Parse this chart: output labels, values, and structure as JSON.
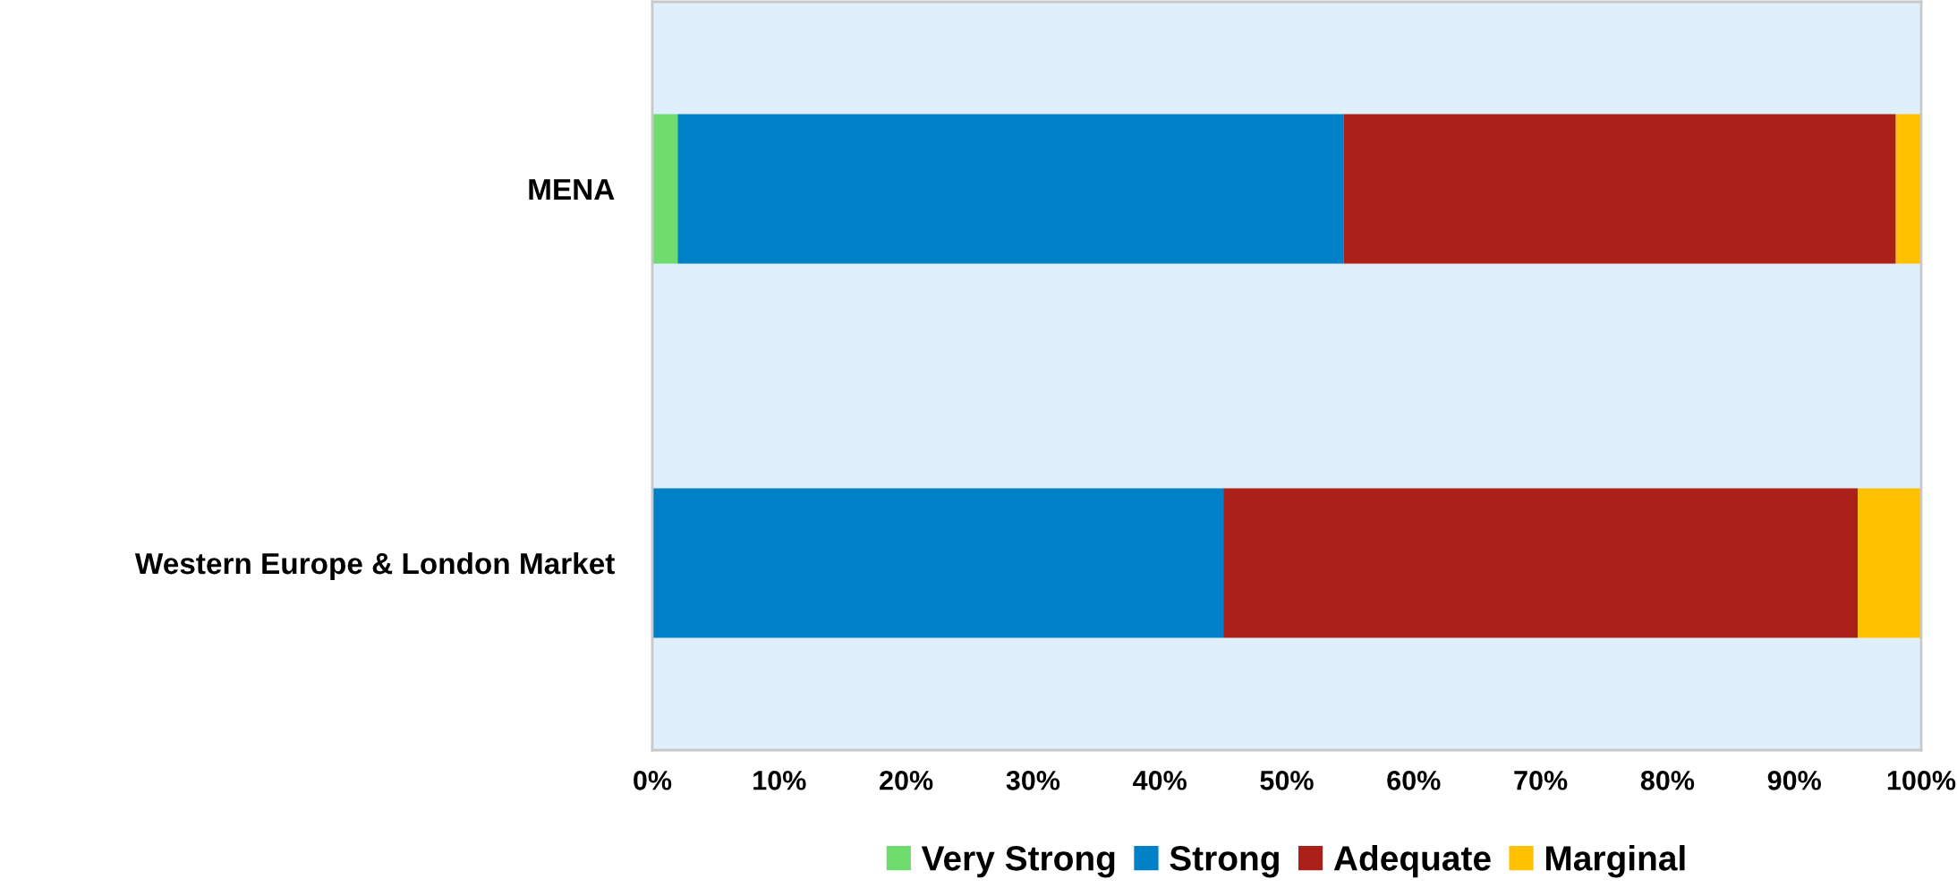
{
  "chart_data": {
    "type": "bar",
    "orientation": "horizontal",
    "stacked": true,
    "categories": [
      "MENA",
      "Western Europe & London Market"
    ],
    "series": [
      {
        "name": "Very Strong",
        "color": "#6fdc6f",
        "values": [
          2,
          0
        ]
      },
      {
        "name": "Strong",
        "color": "#0080c6",
        "values": [
          52.5,
          45
        ]
      },
      {
        "name": "Adequate",
        "color": "#ab2018",
        "values": [
          43.5,
          50
        ]
      },
      {
        "name": "Marginal",
        "color": "#ffc000",
        "values": [
          2,
          5
        ]
      }
    ],
    "xlim": [
      0,
      100
    ],
    "xticks": [
      {
        "value": 0,
        "label": "0%"
      },
      {
        "value": 10,
        "label": "10%"
      },
      {
        "value": 20,
        "label": "20%"
      },
      {
        "value": 30,
        "label": "30%"
      },
      {
        "value": 40,
        "label": "40%"
      },
      {
        "value": 50,
        "label": "50%"
      },
      {
        "value": 60,
        "label": "60%"
      },
      {
        "value": 70,
        "label": "70%"
      },
      {
        "value": 80,
        "label": "80%"
      },
      {
        "value": 90,
        "label": "90%"
      },
      {
        "value": 100,
        "label": "100%"
      }
    ],
    "grid": false,
    "legend": "bottom"
  }
}
